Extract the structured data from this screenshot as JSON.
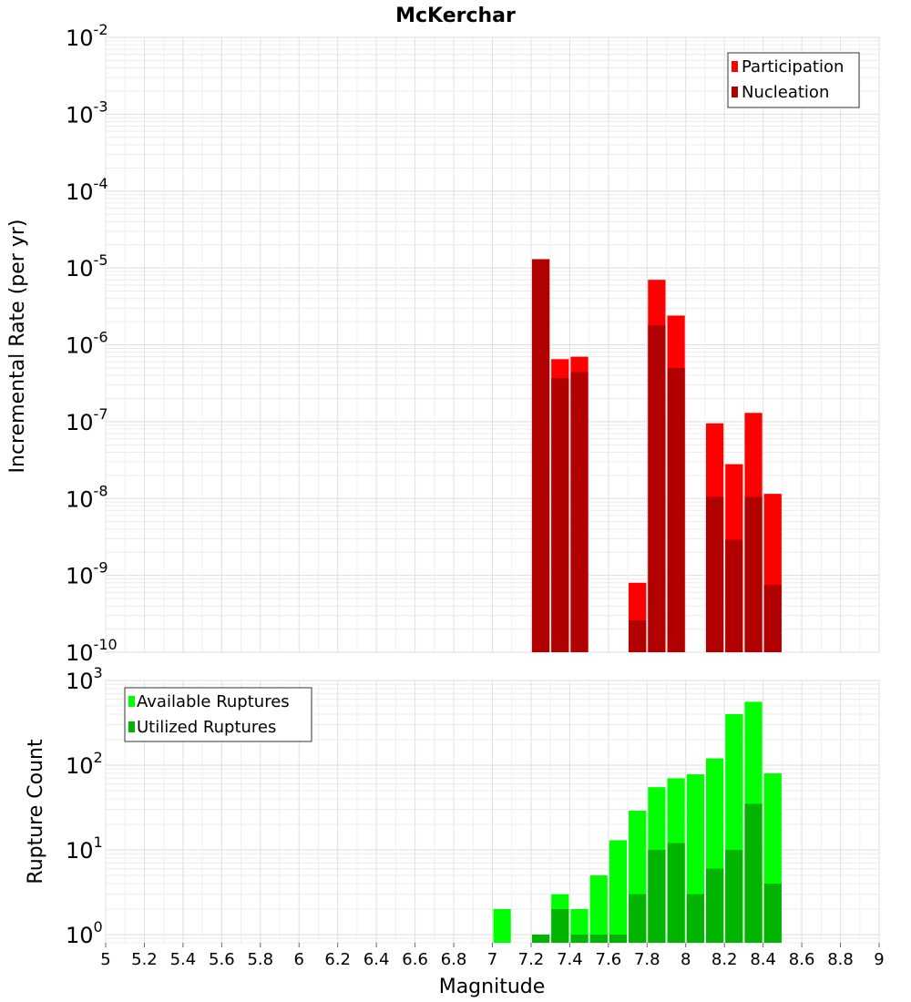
{
  "chart_data": [
    {
      "type": "bar",
      "title": "McKerchar",
      "ylabel": "Incremental Rate (per yr)",
      "yscale": "log",
      "ylim": [
        1e-10,
        0.01
      ],
      "xlim": [
        5,
        9
      ],
      "bar_width": 0.1,
      "grid": true,
      "legend_position": "top-right",
      "y_ticks": [
        {
          "base": "10",
          "exp": "-2"
        },
        {
          "base": "10",
          "exp": "-3"
        },
        {
          "base": "10",
          "exp": "-4"
        },
        {
          "base": "10",
          "exp": "-5"
        },
        {
          "base": "10",
          "exp": "-6"
        },
        {
          "base": "10",
          "exp": "-7"
        },
        {
          "base": "10",
          "exp": "-8"
        },
        {
          "base": "10",
          "exp": "-9"
        },
        {
          "base": "10",
          "exp": "-10"
        }
      ],
      "series": [
        {
          "name": "Participation",
          "color": "#ff0000",
          "x": [
            7.25,
            7.35,
            7.45,
            7.75,
            7.85,
            7.95,
            8.15,
            8.25,
            8.35,
            8.45
          ],
          "values": [
            1.3e-05,
            6.5e-07,
            7e-07,
            8e-10,
            7e-06,
            2.4e-06,
            9.5e-08,
            2.8e-08,
            1.3e-07,
            1.15e-08
          ]
        },
        {
          "name": "Nucleation",
          "color": "#b00000",
          "x": [
            7.25,
            7.35,
            7.45,
            7.75,
            7.85,
            7.95,
            8.15,
            8.25,
            8.35,
            8.45
          ],
          "values": [
            1.3e-05,
            3.7e-07,
            4.4e-07,
            2.6e-10,
            1.8e-06,
            5e-07,
            1.05e-08,
            2.9e-09,
            1.05e-08,
            7.5e-10
          ]
        }
      ]
    },
    {
      "type": "bar",
      "xlabel": "Magnitude",
      "ylabel": "Rupture Count",
      "yscale": "log",
      "ylim": [
        0.8,
        1000
      ],
      "xlim": [
        5,
        9
      ],
      "bar_width": 0.1,
      "grid": true,
      "legend_position": "top-left",
      "y_ticks": [
        {
          "base": "10",
          "exp": "3",
          "value": 1000
        },
        {
          "base": "10",
          "exp": "2",
          "value": 100
        },
        {
          "base": "10",
          "exp": "1",
          "value": 10
        },
        {
          "base": "10",
          "exp": "0",
          "value": 1
        }
      ],
      "x_ticks": [
        "5",
        "5.2",
        "5.4",
        "5.6",
        "5.8",
        "6",
        "6.2",
        "6.4",
        "6.6",
        "6.8",
        "7",
        "7.2",
        "7.4",
        "7.6",
        "7.8",
        "8",
        "8.2",
        "8.4",
        "8.6",
        "8.8",
        "9"
      ],
      "series": [
        {
          "name": "Available Ruptures",
          "color": "#00ff00",
          "x": [
            7.05,
            7.25,
            7.35,
            7.45,
            7.55,
            7.65,
            7.75,
            7.85,
            7.95,
            8.05,
            8.15,
            8.25,
            8.35,
            8.45
          ],
          "values": [
            2,
            1,
            3,
            2,
            5,
            13,
            29,
            55,
            70,
            78,
            120,
            400,
            560,
            80
          ]
        },
        {
          "name": "Utilized Ruptures",
          "color": "#00b400",
          "x": [
            7.25,
            7.35,
            7.45,
            7.55,
            7.65,
            7.75,
            7.85,
            7.95,
            8.05,
            8.15,
            8.25,
            8.35,
            8.45
          ],
          "values": [
            1,
            2,
            1,
            1,
            1,
            3,
            10,
            12,
            3,
            6,
            10,
            35,
            4
          ]
        }
      ]
    }
  ]
}
